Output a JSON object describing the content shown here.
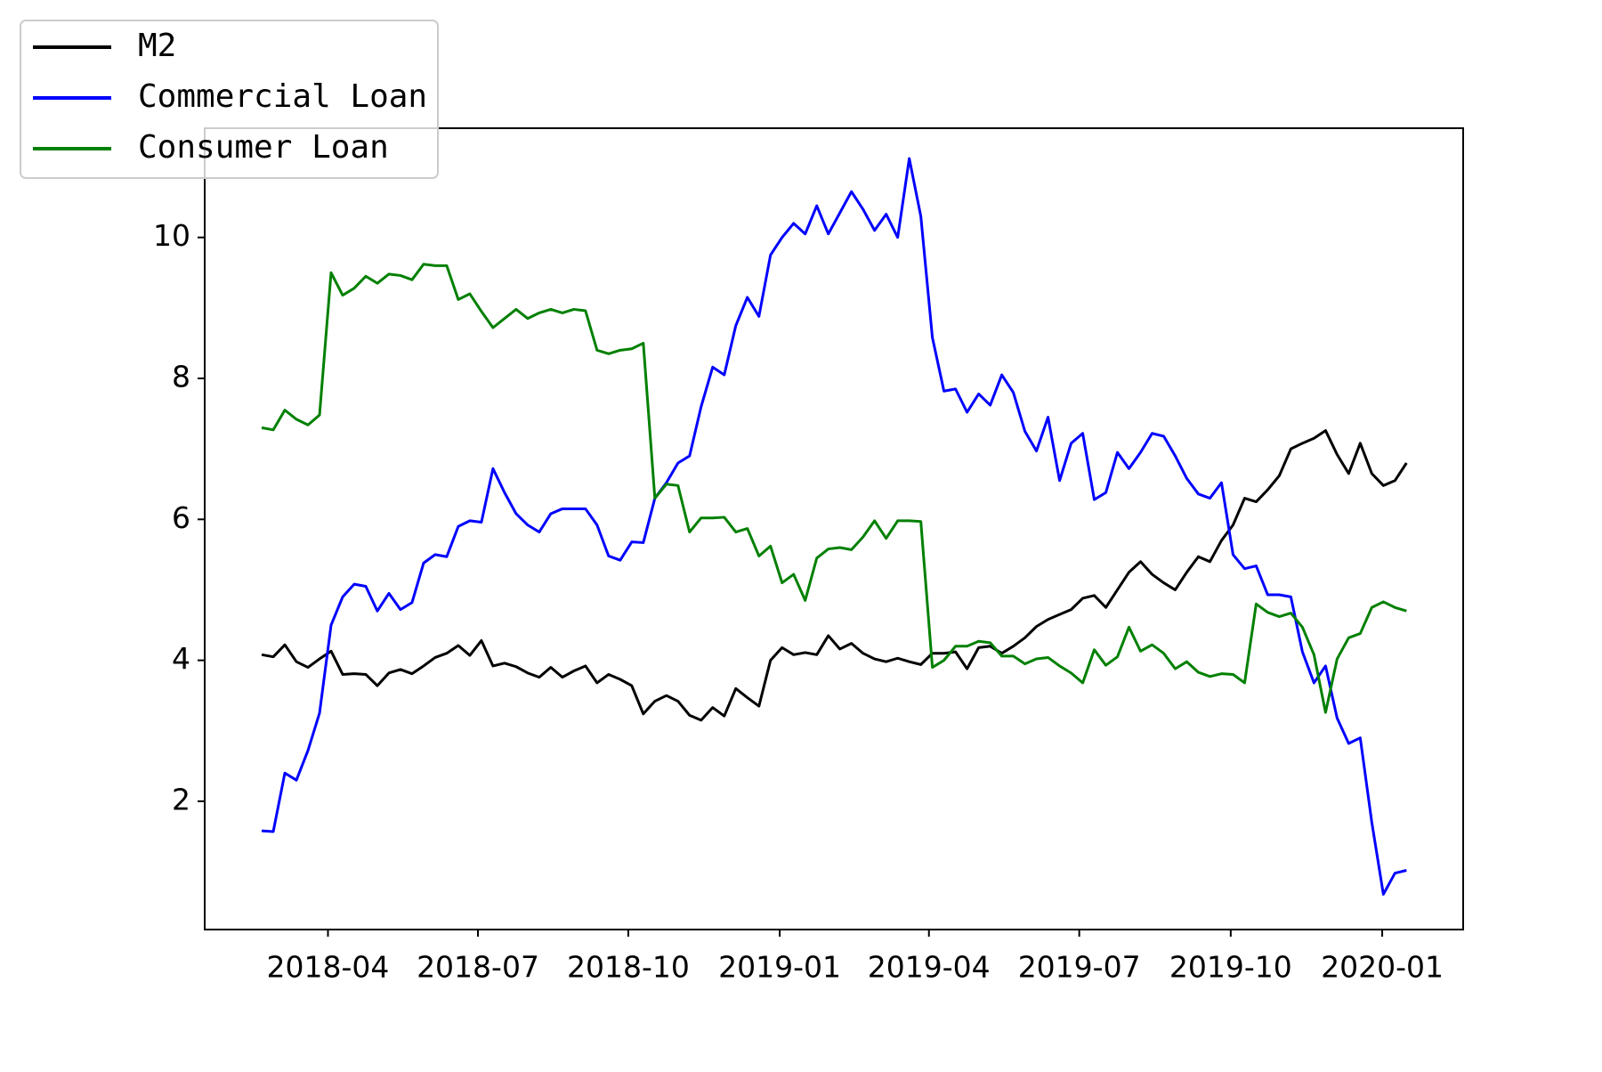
{
  "chart_data": {
    "type": "line",
    "legend": "upper left",
    "grid": false,
    "xlim": [
      -4.93,
      103.9
    ],
    "xticks": [
      {
        "value": 5.73,
        "label": "2018-04"
      },
      {
        "value": 18.7,
        "label": "2018-07"
      },
      {
        "value": 31.7,
        "label": "2018-10"
      },
      {
        "value": 44.8,
        "label": "2019-01"
      },
      {
        "value": 57.7,
        "label": "2019-04"
      },
      {
        "value": 70.7,
        "label": "2019-07"
      },
      {
        "value": 83.8,
        "label": "2019-10"
      },
      {
        "value": 96.9,
        "label": "2020-01"
      }
    ],
    "ylim": [
      0.18,
      11.55
    ],
    "yticks": [
      2,
      4,
      6,
      8,
      10
    ],
    "series": [
      {
        "name": "M2",
        "color": "#000000",
        "values": [
          4.08,
          4.05,
          4.22,
          3.98,
          3.9,
          4.02,
          4.13,
          3.8,
          3.81,
          3.8,
          3.64,
          3.82,
          3.87,
          3.81,
          3.92,
          4.04,
          4.1,
          4.21,
          4.07,
          4.28,
          3.92,
          3.96,
          3.91,
          3.82,
          3.76,
          3.9,
          3.76,
          3.85,
          3.92,
          3.68,
          3.8,
          3.73,
          3.64,
          3.24,
          3.42,
          3.5,
          3.42,
          3.22,
          3.15,
          3.33,
          3.21,
          3.6,
          3.47,
          3.35,
          4.0,
          4.18,
          4.08,
          4.11,
          4.08,
          4.35,
          4.16,
          4.24,
          4.1,
          4.02,
          3.98,
          4.03,
          3.98,
          3.94,
          4.1,
          4.1,
          4.12,
          3.88,
          4.18,
          4.2,
          4.1,
          4.2,
          4.32,
          4.48,
          4.58,
          4.65,
          4.72,
          4.88,
          4.92,
          4.75,
          5.0,
          5.25,
          5.4,
          5.22,
          5.1,
          5.0,
          5.25,
          5.47,
          5.4,
          5.7,
          5.92,
          6.3,
          6.25,
          6.42,
          6.62,
          7.0,
          7.08,
          7.15,
          7.26,
          6.92,
          6.65,
          7.08,
          6.65,
          6.48,
          6.55,
          6.8
        ]
      },
      {
        "name": "Commercial Loan",
        "color": "#0000ff",
        "values": [
          1.58,
          1.57,
          2.4,
          2.3,
          2.72,
          3.25,
          4.5,
          4.9,
          5.08,
          5.05,
          4.7,
          4.95,
          4.72,
          4.82,
          5.38,
          5.5,
          5.47,
          5.9,
          5.98,
          5.96,
          6.72,
          6.38,
          6.08,
          5.92,
          5.82,
          6.08,
          6.15,
          6.15,
          6.15,
          5.92,
          5.48,
          5.42,
          5.68,
          5.67,
          6.3,
          6.52,
          6.8,
          6.9,
          7.6,
          8.16,
          8.05,
          8.75,
          9.15,
          8.88,
          9.75,
          10.0,
          10.2,
          10.05,
          10.45,
          10.05,
          10.35,
          10.65,
          10.4,
          10.1,
          10.33,
          10.0,
          11.12,
          10.3,
          8.58,
          7.82,
          7.85,
          7.52,
          7.78,
          7.62,
          8.05,
          7.8,
          7.25,
          6.97,
          7.45,
          6.55,
          7.08,
          7.22,
          6.28,
          6.38,
          6.95,
          6.72,
          6.95,
          7.22,
          7.18,
          6.9,
          6.58,
          6.36,
          6.3,
          6.52,
          5.5,
          5.3,
          5.34,
          4.93,
          4.93,
          4.9,
          4.12,
          3.68,
          3.92,
          3.18,
          2.82,
          2.9,
          1.7,
          0.68,
          0.98,
          1.02
        ]
      },
      {
        "name": "Consumer Loan",
        "color": "#008000",
        "values": [
          7.3,
          7.27,
          7.55,
          7.42,
          7.34,
          7.48,
          9.5,
          9.18,
          9.28,
          9.45,
          9.35,
          9.48,
          9.46,
          9.4,
          9.62,
          9.6,
          9.6,
          9.12,
          9.2,
          8.95,
          8.72,
          8.85,
          8.98,
          8.85,
          8.93,
          8.98,
          8.93,
          8.98,
          8.96,
          8.4,
          8.35,
          8.4,
          8.42,
          8.5,
          6.3,
          6.5,
          6.48,
          5.82,
          6.02,
          6.02,
          6.03,
          5.82,
          5.87,
          5.48,
          5.62,
          5.1,
          5.22,
          4.85,
          5.45,
          5.58,
          5.6,
          5.57,
          5.75,
          5.98,
          5.73,
          5.98,
          5.98,
          5.97,
          3.9,
          4.0,
          4.2,
          4.2,
          4.27,
          4.25,
          4.06,
          4.06,
          3.95,
          4.02,
          4.04,
          3.92,
          3.82,
          3.68,
          4.15,
          3.93,
          4.05,
          4.47,
          4.13,
          4.22,
          4.1,
          3.88,
          3.98,
          3.83,
          3.77,
          3.81,
          3.8,
          3.68,
          4.8,
          4.68,
          4.62,
          4.67,
          4.47,
          4.08,
          3.26,
          4.02,
          4.32,
          4.38,
          4.75,
          4.83,
          4.75,
          4.7
        ]
      }
    ]
  }
}
